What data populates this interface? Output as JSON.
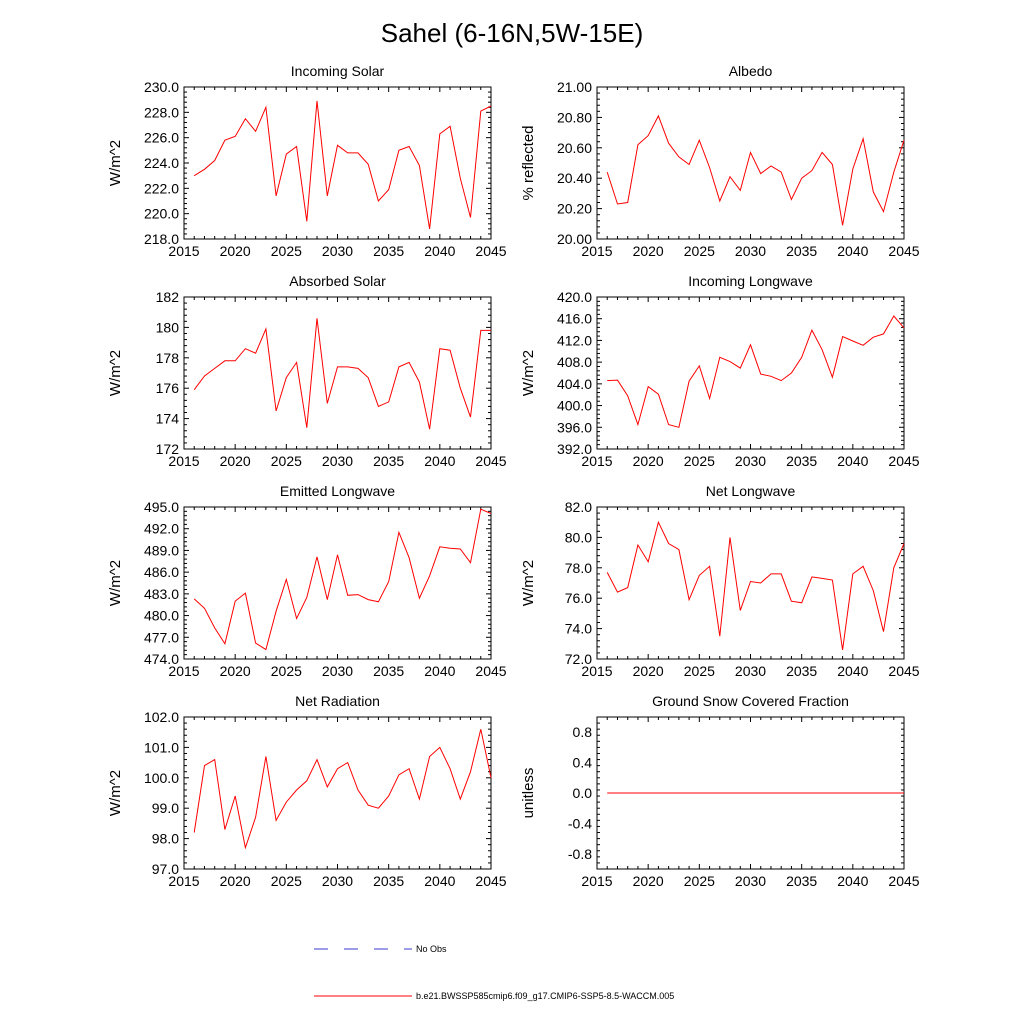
{
  "figure_title": "Sahel (6-16N,5W-15E)",
  "legend": [
    {
      "label": "No Obs",
      "color": "#3a3acf",
      "style": "dashed"
    },
    {
      "label": "b.e21.BWSSP585cmip6.f09_g17.CMIP6-SSP5-8.5-WACCM.005",
      "color": "#ff0000",
      "style": "solid"
    }
  ],
  "colors": {
    "series": "#ff0000",
    "axis": "#000000",
    "obs": "#3a3acf"
  },
  "chart_data": [
    {
      "type": "line",
      "title": "Incoming Solar",
      "ylabel": "W/m^2",
      "xlabel": "",
      "xlim": [
        2015,
        2045
      ],
      "ylim": [
        218,
        230
      ],
      "xticks": [
        2015,
        2020,
        2025,
        2030,
        2035,
        2040,
        2045
      ],
      "xtick_labels": [
        "2015",
        "2020",
        "2025",
        "2030",
        "2035",
        "2040",
        "2045"
      ],
      "yticks": [
        218,
        220,
        222,
        224,
        226,
        228,
        230
      ],
      "ytick_labels": [
        "218.0",
        "220.0",
        "222.0",
        "224.0",
        "226.0",
        "228.0",
        "230.0"
      ],
      "x": [
        2016,
        2017,
        2018,
        2019,
        2020,
        2021,
        2022,
        2023,
        2024,
        2025,
        2026,
        2027,
        2028,
        2029,
        2030,
        2031,
        2032,
        2033,
        2034,
        2035,
        2036,
        2037,
        2038,
        2039,
        2040,
        2041,
        2042,
        2043,
        2044,
        2045
      ],
      "series": [
        {
          "name": "b.e21.BWSSP585cmip6.f09_g17.CMIP6-SSP5-8.5-WACCM.005",
          "values": [
            223.0,
            223.5,
            224.2,
            225.8,
            226.1,
            227.5,
            226.5,
            228.4,
            221.4,
            224.7,
            225.3,
            219.4,
            228.9,
            221.4,
            225.4,
            224.8,
            224.8,
            223.9,
            221.0,
            221.9,
            225.0,
            225.3,
            223.8,
            218.8,
            226.3,
            226.9,
            222.8,
            219.7,
            228.1,
            228.5
          ]
        }
      ]
    },
    {
      "type": "line",
      "title": "Albedo",
      "ylabel": "% reflected",
      "xlabel": "",
      "xlim": [
        2015,
        2045
      ],
      "ylim": [
        20.0,
        21.0
      ],
      "xticks": [
        2015,
        2020,
        2025,
        2030,
        2035,
        2040,
        2045
      ],
      "xtick_labels": [
        "2015",
        "2020",
        "2025",
        "2030",
        "2035",
        "2040",
        "2045"
      ],
      "yticks": [
        20.0,
        20.2,
        20.4,
        20.6,
        20.8,
        21.0
      ],
      "ytick_labels": [
        "20.00",
        "20.20",
        "20.40",
        "20.60",
        "20.80",
        "21.00"
      ],
      "x": [
        2016,
        2017,
        2018,
        2019,
        2020,
        2021,
        2022,
        2023,
        2024,
        2025,
        2026,
        2027,
        2028,
        2029,
        2030,
        2031,
        2032,
        2033,
        2034,
        2035,
        2036,
        2037,
        2038,
        2039,
        2040,
        2041,
        2042,
        2043,
        2044,
        2045
      ],
      "series": [
        {
          "name": "b.e21.BWSSP585cmip6.f09_g17.CMIP6-SSP5-8.5-WACCM.005",
          "values": [
            20.44,
            20.23,
            20.24,
            20.62,
            20.68,
            20.81,
            20.63,
            20.54,
            20.49,
            20.65,
            20.47,
            20.25,
            20.41,
            20.32,
            20.57,
            20.43,
            20.48,
            20.44,
            20.26,
            20.4,
            20.45,
            20.57,
            20.49,
            20.09,
            20.46,
            20.66,
            20.31,
            20.18,
            20.44,
            20.65
          ]
        }
      ]
    },
    {
      "type": "line",
      "title": "Absorbed Solar",
      "ylabel": "W/m^2",
      "xlabel": "",
      "xlim": [
        2015,
        2045
      ],
      "ylim": [
        172,
        182
      ],
      "xticks": [
        2015,
        2020,
        2025,
        2030,
        2035,
        2040,
        2045
      ],
      "xtick_labels": [
        "2015",
        "2020",
        "2025",
        "2030",
        "2035",
        "2040",
        "2045"
      ],
      "yticks": [
        172,
        174,
        176,
        178,
        180,
        182
      ],
      "ytick_labels": [
        "172",
        "174",
        "176",
        "178",
        "180",
        "182"
      ],
      "x": [
        2016,
        2017,
        2018,
        2019,
        2020,
        2021,
        2022,
        2023,
        2024,
        2025,
        2026,
        2027,
        2028,
        2029,
        2030,
        2031,
        2032,
        2033,
        2034,
        2035,
        2036,
        2037,
        2038,
        2039,
        2040,
        2041,
        2042,
        2043,
        2044,
        2045
      ],
      "series": [
        {
          "name": "b.e21.BWSSP585cmip6.f09_g17.CMIP6-SSP5-8.5-WACCM.005",
          "values": [
            175.9,
            176.8,
            177.3,
            177.8,
            177.8,
            178.6,
            178.3,
            179.9,
            174.5,
            176.7,
            177.7,
            173.4,
            180.6,
            175.0,
            177.4,
            177.4,
            177.3,
            176.7,
            174.8,
            175.1,
            177.4,
            177.7,
            176.4,
            173.3,
            178.6,
            178.5,
            176.0,
            174.1,
            179.8,
            179.8
          ]
        }
      ]
    },
    {
      "type": "line",
      "title": "Incoming Longwave",
      "ylabel": "W/m^2",
      "xlabel": "",
      "xlim": [
        2015,
        2045
      ],
      "ylim": [
        392,
        420
      ],
      "xticks": [
        2015,
        2020,
        2025,
        2030,
        2035,
        2040,
        2045
      ],
      "xtick_labels": [
        "2015",
        "2020",
        "2025",
        "2030",
        "2035",
        "2040",
        "2045"
      ],
      "yticks": [
        392,
        396,
        400,
        404,
        408,
        412,
        416,
        420
      ],
      "ytick_labels": [
        "392.0",
        "396.0",
        "400.0",
        "404.0",
        "408.0",
        "412.0",
        "416.0",
        "420.0"
      ],
      "x": [
        2016,
        2017,
        2018,
        2019,
        2020,
        2021,
        2022,
        2023,
        2024,
        2025,
        2026,
        2027,
        2028,
        2029,
        2030,
        2031,
        2032,
        2033,
        2034,
        2035,
        2036,
        2037,
        2038,
        2039,
        2040,
        2041,
        2042,
        2043,
        2044,
        2045
      ],
      "series": [
        {
          "name": "b.e21.BWSSP585cmip6.f09_g17.CMIP6-SSP5-8.5-WACCM.005",
          "values": [
            404.6,
            404.7,
            401.8,
            396.5,
            403.5,
            402.1,
            396.5,
            396.0,
            404.5,
            407.3,
            401.3,
            408.9,
            408.1,
            406.9,
            411.2,
            405.8,
            405.4,
            404.6,
            406.0,
            408.9,
            413.9,
            410.3,
            405.2,
            412.7,
            411.9,
            411.1,
            412.6,
            413.2,
            416.5,
            414.3
          ]
        }
      ]
    },
    {
      "type": "line",
      "title": "Emitted Longwave",
      "ylabel": "W/m^2",
      "xlabel": "",
      "xlim": [
        2015,
        2045
      ],
      "ylim": [
        474,
        495
      ],
      "xticks": [
        2015,
        2020,
        2025,
        2030,
        2035,
        2040,
        2045
      ],
      "xtick_labels": [
        "2015",
        "2020",
        "2025",
        "2030",
        "2035",
        "2040",
        "2045"
      ],
      "yticks": [
        474,
        477,
        480,
        483,
        486,
        489,
        492,
        495
      ],
      "ytick_labels": [
        "474.0",
        "477.0",
        "480.0",
        "483.0",
        "486.0",
        "489.0",
        "492.0",
        "495.0"
      ],
      "x": [
        2016,
        2017,
        2018,
        2019,
        2020,
        2021,
        2022,
        2023,
        2024,
        2025,
        2026,
        2027,
        2028,
        2029,
        2030,
        2031,
        2032,
        2033,
        2034,
        2035,
        2036,
        2037,
        2038,
        2039,
        2040,
        2041,
        2042,
        2043,
        2044,
        2045
      ],
      "series": [
        {
          "name": "b.e21.BWSSP585cmip6.f09_g17.CMIP6-SSP5-8.5-WACCM.005",
          "values": [
            482.3,
            481.0,
            478.3,
            476.1,
            482.0,
            483.1,
            476.2,
            475.3,
            480.6,
            485.0,
            479.6,
            482.5,
            488.1,
            482.2,
            488.4,
            482.8,
            482.9,
            482.2,
            481.9,
            484.7,
            491.5,
            488.0,
            482.4,
            485.5,
            489.5,
            489.3,
            489.2,
            487.3,
            494.7,
            494.1
          ]
        }
      ]
    },
    {
      "type": "line",
      "title": "Net Longwave",
      "ylabel": "W/m^2",
      "xlabel": "",
      "xlim": [
        2015,
        2045
      ],
      "ylim": [
        72,
        82
      ],
      "xticks": [
        2015,
        2020,
        2025,
        2030,
        2035,
        2040,
        2045
      ],
      "xtick_labels": [
        "2015",
        "2020",
        "2025",
        "2030",
        "2035",
        "2040",
        "2045"
      ],
      "yticks": [
        72,
        74,
        76,
        78,
        80,
        82
      ],
      "ytick_labels": [
        "72.0",
        "74.0",
        "76.0",
        "78.0",
        "80.0",
        "82.0"
      ],
      "x": [
        2016,
        2017,
        2018,
        2019,
        2020,
        2021,
        2022,
        2023,
        2024,
        2025,
        2026,
        2027,
        2028,
        2029,
        2030,
        2031,
        2032,
        2033,
        2034,
        2035,
        2036,
        2037,
        2038,
        2039,
        2040,
        2041,
        2042,
        2043,
        2044,
        2045
      ],
      "series": [
        {
          "name": "b.e21.BWSSP585cmip6.f09_g17.CMIP6-SSP5-8.5-WACCM.005",
          "values": [
            77.7,
            76.4,
            76.7,
            79.5,
            78.4,
            81.0,
            79.6,
            79.2,
            75.9,
            77.5,
            78.1,
            73.5,
            80.0,
            75.2,
            77.1,
            77.0,
            77.6,
            77.6,
            75.8,
            75.7,
            77.4,
            77.3,
            77.2,
            72.6,
            77.6,
            78.1,
            76.5,
            73.8,
            78.0,
            79.6
          ]
        }
      ]
    },
    {
      "type": "line",
      "title": "Net Radiation",
      "ylabel": "W/m^2",
      "xlabel": "",
      "xlim": [
        2015,
        2045
      ],
      "ylim": [
        97,
        102
      ],
      "xticks": [
        2015,
        2020,
        2025,
        2030,
        2035,
        2040,
        2045
      ],
      "xtick_labels": [
        "2015",
        "2020",
        "2025",
        "2030",
        "2035",
        "2040",
        "2045"
      ],
      "yticks": [
        97,
        98,
        99,
        100,
        101,
        102
      ],
      "ytick_labels": [
        "97.0",
        "98.0",
        "99.0",
        "100.0",
        "101.0",
        "102.0"
      ],
      "x": [
        2016,
        2017,
        2018,
        2019,
        2020,
        2021,
        2022,
        2023,
        2024,
        2025,
        2026,
        2027,
        2028,
        2029,
        2030,
        2031,
        2032,
        2033,
        2034,
        2035,
        2036,
        2037,
        2038,
        2039,
        2040,
        2041,
        2042,
        2043,
        2044,
        2045
      ],
      "series": [
        {
          "name": "b.e21.BWSSP585cmip6.f09_g17.CMIP6-SSP5-8.5-WACCM.005",
          "values": [
            98.2,
            100.4,
            100.6,
            98.3,
            99.4,
            97.7,
            98.7,
            100.7,
            98.6,
            99.2,
            99.6,
            99.9,
            100.6,
            99.7,
            100.3,
            100.5,
            99.6,
            99.1,
            99.0,
            99.4,
            100.1,
            100.3,
            99.3,
            100.7,
            101.0,
            100.3,
            99.3,
            100.2,
            101.6,
            100.0
          ]
        }
      ]
    },
    {
      "type": "line",
      "title": "Ground Snow Covered Fraction",
      "ylabel": "unitless",
      "xlabel": "",
      "xlim": [
        2015,
        2045
      ],
      "ylim": [
        -1,
        1
      ],
      "xticks": [
        2015,
        2020,
        2025,
        2030,
        2035,
        2040,
        2045
      ],
      "xtick_labels": [
        "2015",
        "2020",
        "2025",
        "2030",
        "2035",
        "2040",
        "2045"
      ],
      "yticks": [
        -0.8,
        -0.4,
        0.0,
        0.4,
        0.8
      ],
      "ytick_labels": [
        "-0.8",
        "-0.4",
        "0.0",
        "0.4",
        "0.8"
      ],
      "x": [
        2016,
        2017,
        2018,
        2019,
        2020,
        2021,
        2022,
        2023,
        2024,
        2025,
        2026,
        2027,
        2028,
        2029,
        2030,
        2031,
        2032,
        2033,
        2034,
        2035,
        2036,
        2037,
        2038,
        2039,
        2040,
        2041,
        2042,
        2043,
        2044,
        2045
      ],
      "series": [
        {
          "name": "b.e21.BWSSP585cmip6.f09_g17.CMIP6-SSP5-8.5-WACCM.005",
          "values": [
            0,
            0,
            0,
            0,
            0,
            0,
            0,
            0,
            0,
            0,
            0,
            0,
            0,
            0,
            0,
            0,
            0,
            0,
            0,
            0,
            0,
            0,
            0,
            0,
            0,
            0,
            0,
            0,
            0,
            0
          ]
        }
      ]
    }
  ]
}
